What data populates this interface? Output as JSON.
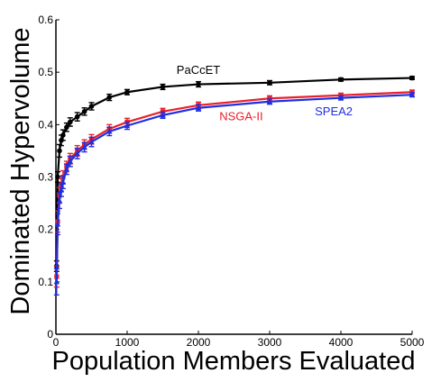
{
  "chart_data": {
    "type": "line",
    "xlabel": "Population Members Evaluated",
    "ylabel": "Dominated Hypervolume",
    "xlim": [
      0,
      5000
    ],
    "ylim": [
      0,
      0.6
    ],
    "x_ticks": [
      "0",
      "1000",
      "2000",
      "3000",
      "4000",
      "5000"
    ],
    "y_ticks": [
      "0",
      "0.1",
      "0.2",
      "0.3",
      "0.4",
      "0.5",
      "0.6"
    ],
    "grid": false,
    "legend": "inline labels next to curves",
    "series": [
      {
        "name": "PaCcET",
        "color": "#000000",
        "marker": "circle",
        "x": [
          10,
          25,
          50,
          75,
          100,
          150,
          200,
          300,
          400,
          500,
          750,
          1000,
          1500,
          2000,
          3000,
          4000,
          5000
        ],
        "y": [
          0.13,
          0.3,
          0.35,
          0.37,
          0.38,
          0.395,
          0.405,
          0.415,
          0.425,
          0.435,
          0.452,
          0.462,
          0.472,
          0.477,
          0.48,
          0.486,
          0.489
        ],
        "err": [
          0.01,
          0.01,
          0.012,
          0.01,
          0.01,
          0.008,
          0.008,
          0.008,
          0.007,
          0.007,
          0.006,
          0.005,
          0.005,
          0.005,
          0.004,
          0.003,
          0.003
        ]
      },
      {
        "name": "NSGA-II",
        "color": "#e8212b",
        "marker": "square",
        "x": [
          10,
          25,
          50,
          75,
          100,
          150,
          200,
          300,
          400,
          500,
          750,
          1000,
          1500,
          2000,
          3000,
          4000,
          5000
        ],
        "y": [
          0.11,
          0.215,
          0.265,
          0.285,
          0.3,
          0.32,
          0.335,
          0.35,
          0.362,
          0.372,
          0.392,
          0.405,
          0.425,
          0.437,
          0.45,
          0.456,
          0.462
        ],
        "err": [
          0.02,
          0.02,
          0.015,
          0.012,
          0.012,
          0.01,
          0.01,
          0.01,
          0.009,
          0.009,
          0.008,
          0.007,
          0.006,
          0.006,
          0.005,
          0.004,
          0.004
        ]
      },
      {
        "name": "SPEA2",
        "color": "#1f2fe0",
        "marker": "triangle",
        "x": [
          10,
          25,
          50,
          75,
          100,
          150,
          200,
          300,
          400,
          500,
          750,
          1000,
          1500,
          2000,
          3000,
          4000,
          5000
        ],
        "y": [
          0.1,
          0.21,
          0.255,
          0.275,
          0.29,
          0.315,
          0.33,
          0.345,
          0.357,
          0.367,
          0.387,
          0.398,
          0.418,
          0.432,
          0.444,
          0.451,
          0.457
        ],
        "err": [
          0.025,
          0.02,
          0.015,
          0.012,
          0.012,
          0.01,
          0.01,
          0.01,
          0.009,
          0.009,
          0.008,
          0.007,
          0.006,
          0.006,
          0.005,
          0.004,
          0.004
        ]
      }
    ],
    "annotations": [
      {
        "text": "PaCcET",
        "series": "PaCcET",
        "at_x": 2000,
        "at_y": 0.497,
        "color": "#000000"
      },
      {
        "text": "NSGA-II",
        "series": "NSGA-II",
        "at_x": 2600,
        "at_y": 0.408,
        "color": "#e8212b"
      },
      {
        "text": "SPEA2",
        "series": "SPEA2",
        "at_x": 3900,
        "at_y": 0.418,
        "color": "#1f2fe0"
      }
    ]
  }
}
